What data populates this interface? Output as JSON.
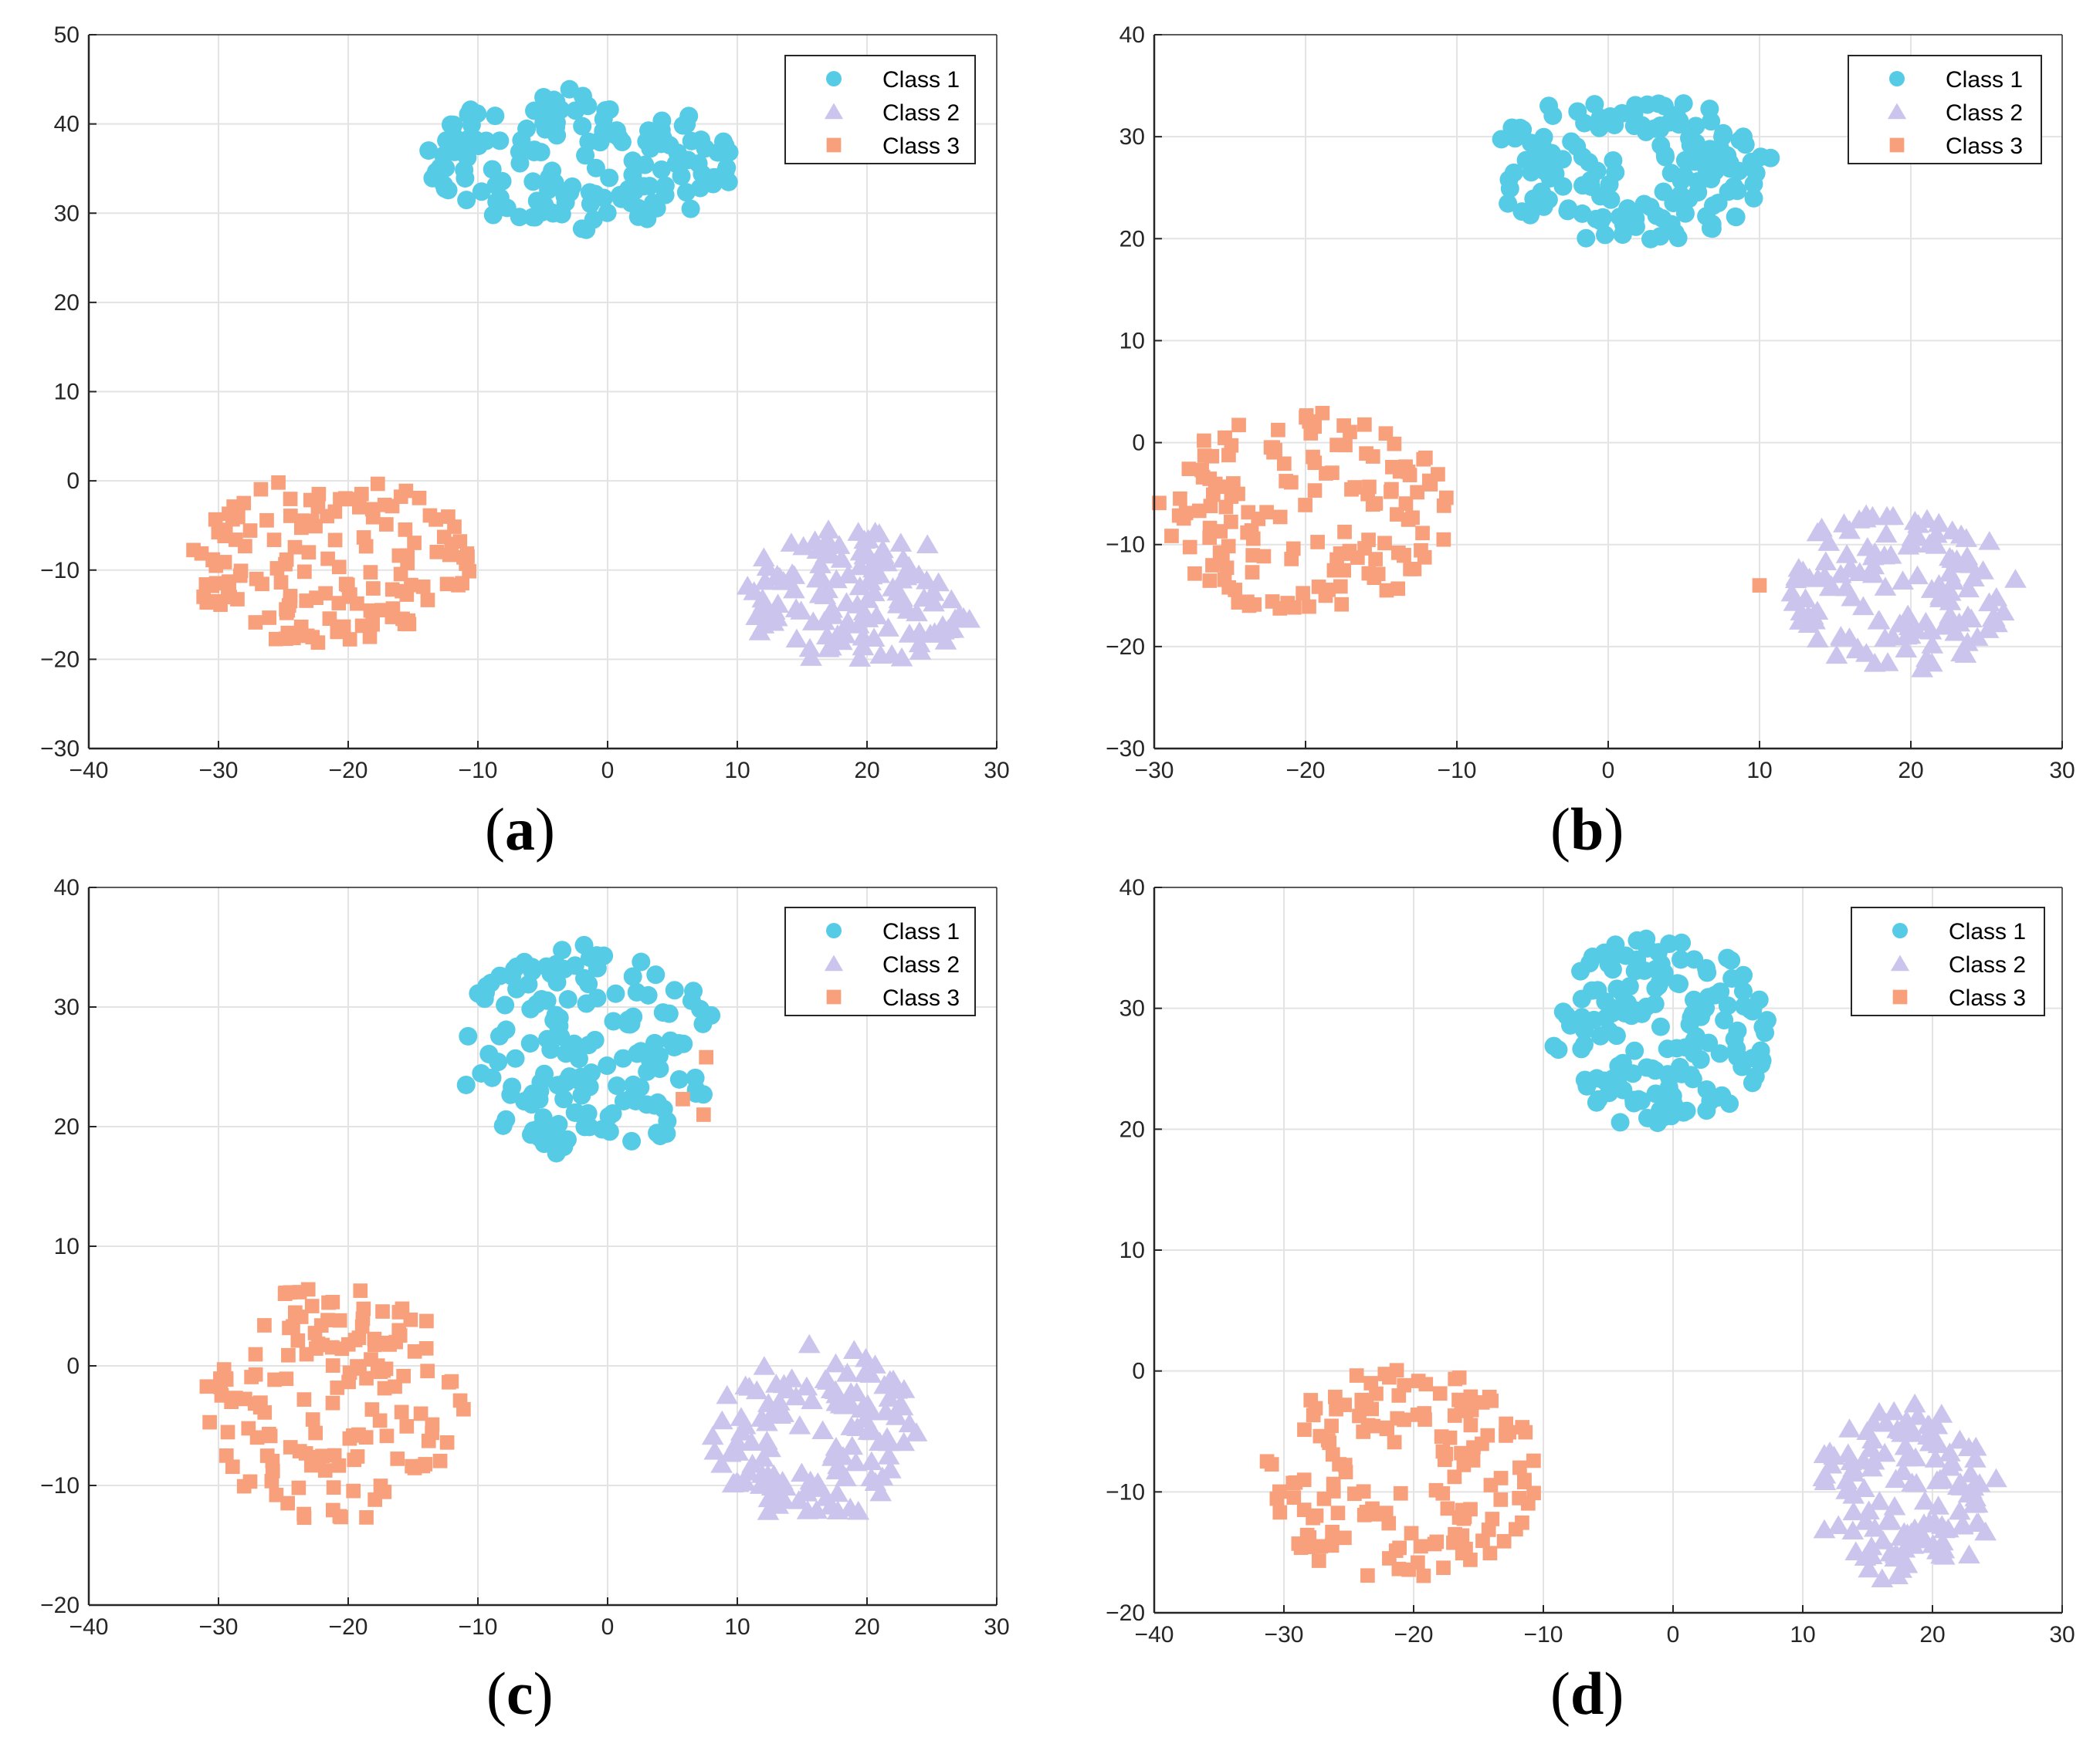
{
  "colors": {
    "class1": "#56cbe6",
    "class2": "#cbc5ee",
    "class3": "#f8a07c",
    "grid": "#e3e3e3",
    "axis": "#262626"
  },
  "chart_data": [
    {
      "id": "a",
      "type": "scatter",
      "panel_label": "a",
      "xlim": [
        -40,
        30
      ],
      "ylim": [
        -30,
        50
      ],
      "xticks": [
        -40,
        -30,
        -20,
        -10,
        0,
        10,
        20,
        30
      ],
      "yticks": [
        -30,
        -20,
        -10,
        0,
        10,
        20,
        30,
        40,
        50
      ],
      "xtick_labels": [
        "−40",
        "−30",
        "−20",
        "−10",
        "0",
        "10",
        "20",
        "30"
      ],
      "ytick_labels": [
        "−30",
        "−20",
        "−10",
        "0",
        "10",
        "20",
        "30",
        "40",
        "50"
      ],
      "grid": true,
      "legend_position": "top-right",
      "series": [
        {
          "name": "Class 1",
          "marker": "circle",
          "cluster": {
            "cx": -2,
            "cy": 36,
            "rx": 12,
            "ry": 8,
            "n": 160,
            "seed": 11
          },
          "extra_points": []
        },
        {
          "name": "Class 2",
          "marker": "triangle",
          "cluster": {
            "cx": 19.5,
            "cy": -13,
            "rx": 9,
            "ry": 8,
            "n": 130,
            "seed": 12
          },
          "extra_points": []
        },
        {
          "name": "Class 3",
          "marker": "square",
          "cluster": {
            "cx": -21.5,
            "cy": -9,
            "rx": 11,
            "ry": 9.5,
            "n": 150,
            "seed": 13
          },
          "extra_points": []
        }
      ]
    },
    {
      "id": "b",
      "type": "scatter",
      "panel_label": "b",
      "xlim": [
        -30,
        30
      ],
      "ylim": [
        -30,
        40
      ],
      "xticks": [
        -30,
        -20,
        -10,
        0,
        10,
        20,
        30
      ],
      "yticks": [
        -30,
        -20,
        -10,
        0,
        10,
        20,
        30,
        40
      ],
      "xtick_labels": [
        "−30",
        "−20",
        "−10",
        "0",
        "10",
        "20",
        "30"
      ],
      "ytick_labels": [
        "−30",
        "−20",
        "−10",
        "0",
        "10",
        "20",
        "30",
        "40"
      ],
      "grid": true,
      "legend_position": "top-right",
      "series": [
        {
          "name": "Class 1",
          "marker": "circle",
          "cluster": {
            "cx": 1.5,
            "cy": 27,
            "rx": 9.5,
            "ry": 7.5,
            "n": 160,
            "seed": 21
          },
          "extra_points": []
        },
        {
          "name": "Class 2",
          "marker": "triangle",
          "cluster": {
            "cx": 19.5,
            "cy": -14,
            "rx": 7.5,
            "ry": 8.5,
            "n": 130,
            "seed": 22
          },
          "extra_points": []
        },
        {
          "name": "Class 3",
          "marker": "square",
          "cluster": {
            "cx": -20,
            "cy": -7,
            "rx": 10,
            "ry": 10,
            "n": 150,
            "seed": 23
          },
          "extra_points": [
            [
              10,
              -14
            ]
          ]
        }
      ]
    },
    {
      "id": "c",
      "type": "scatter",
      "panel_label": "c",
      "xlim": [
        -40,
        30
      ],
      "ylim": [
        -20,
        40
      ],
      "xticks": [
        -40,
        -30,
        -20,
        -10,
        0,
        10,
        20,
        30
      ],
      "yticks": [
        -20,
        -10,
        0,
        10,
        20,
        30,
        40
      ],
      "xtick_labels": [
        "−40",
        "−30",
        "−20",
        "−10",
        "0",
        "10",
        "20",
        "30"
      ],
      "ytick_labels": [
        "−20",
        "−10",
        "0",
        "10",
        "20",
        "30",
        "40"
      ],
      "grid": true,
      "legend_position": "top-right",
      "series": [
        {
          "name": "Class 1",
          "marker": "circle",
          "cluster": {
            "cx": -1.5,
            "cy": 26.5,
            "rx": 10,
            "ry": 9,
            "n": 160,
            "seed": 31
          },
          "extra_points": []
        },
        {
          "name": "Class 2",
          "marker": "triangle",
          "cluster": {
            "cx": 16,
            "cy": -5.5,
            "rx": 8,
            "ry": 7.5,
            "n": 130,
            "seed": 32
          },
          "extra_points": []
        },
        {
          "name": "Class 3",
          "marker": "square",
          "cluster": {
            "cx": -21,
            "cy": -3,
            "rx": 10,
            "ry": 10,
            "n": 150,
            "seed": 33
          },
          "extra_points": [
            [
              5.8,
              22.3
            ],
            [
              7.4,
              21
            ],
            [
              7.6,
              25.8
            ]
          ]
        }
      ]
    },
    {
      "id": "d",
      "type": "scatter",
      "panel_label": "d",
      "xlim": [
        -40,
        30
      ],
      "ylim": [
        -20,
        40
      ],
      "xticks": [
        -40,
        -30,
        -20,
        -10,
        0,
        10,
        20,
        30
      ],
      "yticks": [
        -20,
        -10,
        0,
        10,
        20,
        30,
        40
      ],
      "xtick_labels": [
        "−40",
        "−30",
        "−20",
        "−10",
        "0",
        "10",
        "20",
        "30"
      ],
      "ytick_labels": [
        "−20",
        "−10",
        "0",
        "10",
        "20",
        "30",
        "40"
      ],
      "grid": true,
      "legend_position": "top-right",
      "series": [
        {
          "name": "Class 1",
          "marker": "circle",
          "cluster": {
            "cx": -1,
            "cy": 28,
            "rx": 8.5,
            "ry": 8,
            "n": 160,
            "seed": 41
          },
          "extra_points": []
        },
        {
          "name": "Class 2",
          "marker": "triangle",
          "cluster": {
            "cx": 18,
            "cy": -10,
            "rx": 7,
            "ry": 7.5,
            "n": 130,
            "seed": 42
          },
          "extra_points": []
        },
        {
          "name": "Class 3",
          "marker": "square",
          "cluster": {
            "cx": -21,
            "cy": -8.5,
            "rx": 10.5,
            "ry": 9,
            "n": 150,
            "seed": 43
          },
          "extra_points": []
        }
      ]
    }
  ]
}
